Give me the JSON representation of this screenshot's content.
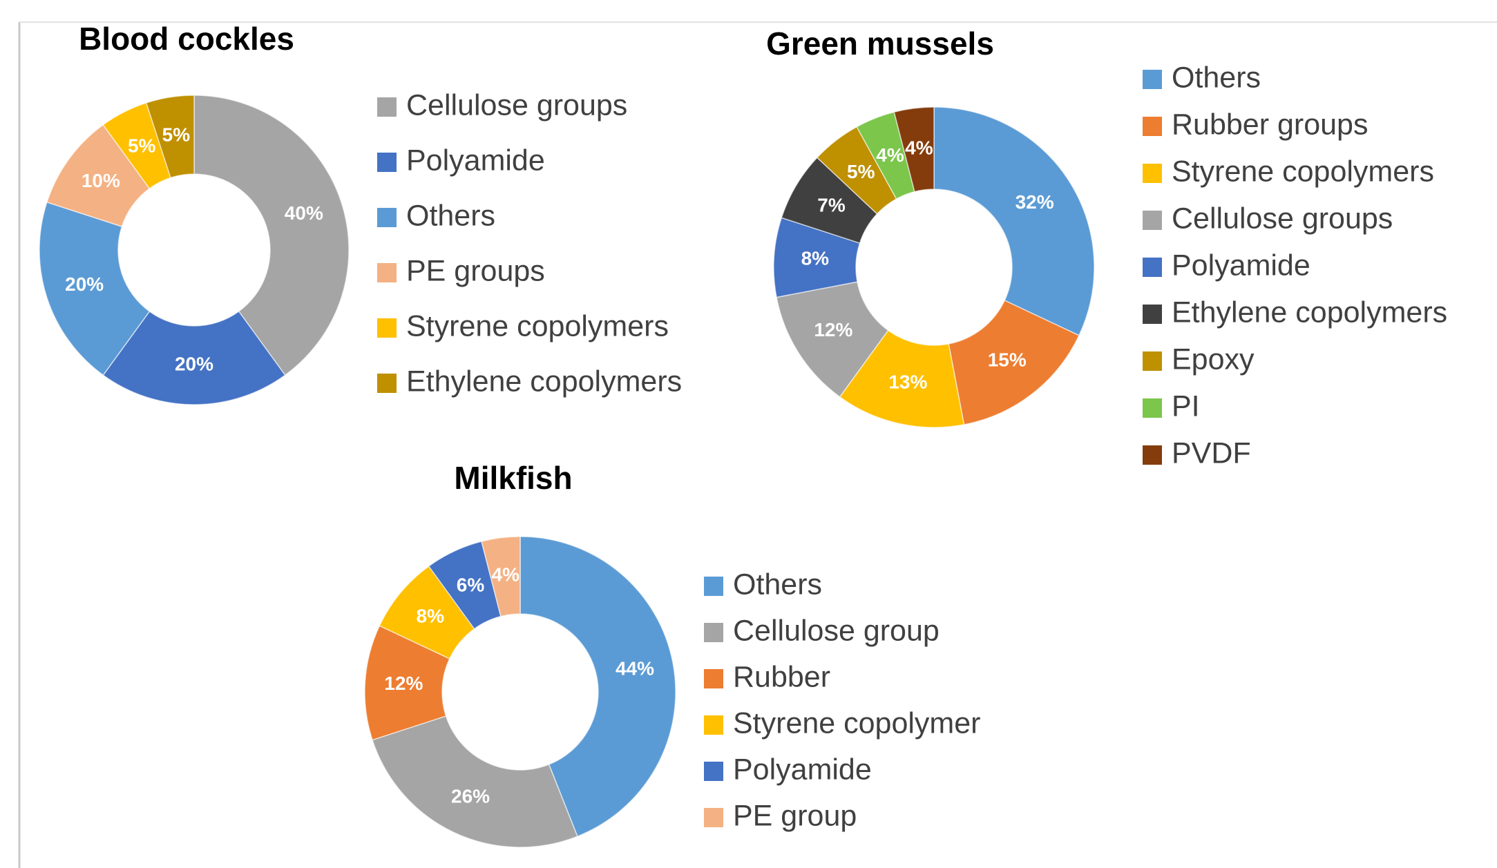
{
  "chart_data": [
    {
      "type": "pie",
      "title": "Blood cockles",
      "categories": [
        "Cellulose groups",
        "Polyamide",
        "Others",
        "PE groups",
        "Styrene copolymers",
        "Ethylene copolymers"
      ],
      "values": [
        40,
        20,
        20,
        10,
        5,
        5
      ],
      "value_labels": [
        "40%",
        "20%",
        "20%",
        "10%",
        "5%",
        "5%"
      ],
      "colors": [
        "#a5a5a5",
        "#4472c4",
        "#5b9bd5",
        "#f4b183",
        "#ffc000",
        "#bf9000"
      ]
    },
    {
      "type": "pie",
      "title": "Green mussels",
      "categories": [
        "Others",
        "Rubber groups",
        "Styrene copolymers",
        "Cellulose groups",
        "Polyamide",
        "Ethylene copolymers",
        "Epoxy",
        "PI",
        "PVDF"
      ],
      "values": [
        32,
        15,
        13,
        12,
        8,
        7,
        5,
        4,
        4
      ],
      "value_labels": [
        "32%",
        "15%",
        "13%",
        "12%",
        "8%",
        "7%",
        "5%",
        "4%",
        "4%"
      ],
      "colors": [
        "#5b9bd5",
        "#ed7d31",
        "#ffc000",
        "#a5a5a5",
        "#4472c4",
        "#404040",
        "#bf9000",
        "#7cc64b",
        "#843c0c"
      ]
    },
    {
      "type": "pie",
      "title": "Milkfish",
      "categories": [
        "Others",
        "Cellulose group",
        "Rubber",
        "Styrene copolymer",
        "Polyamide",
        "PE group"
      ],
      "values": [
        44,
        26,
        12,
        8,
        6,
        4
      ],
      "value_labels": [
        "44%",
        "26%",
        "12%",
        "8%",
        "6%",
        "4%"
      ],
      "colors": [
        "#5b9bd5",
        "#a5a5a5",
        "#ed7d31",
        "#ffc000",
        "#4472c4",
        "#f4b183"
      ]
    }
  ]
}
